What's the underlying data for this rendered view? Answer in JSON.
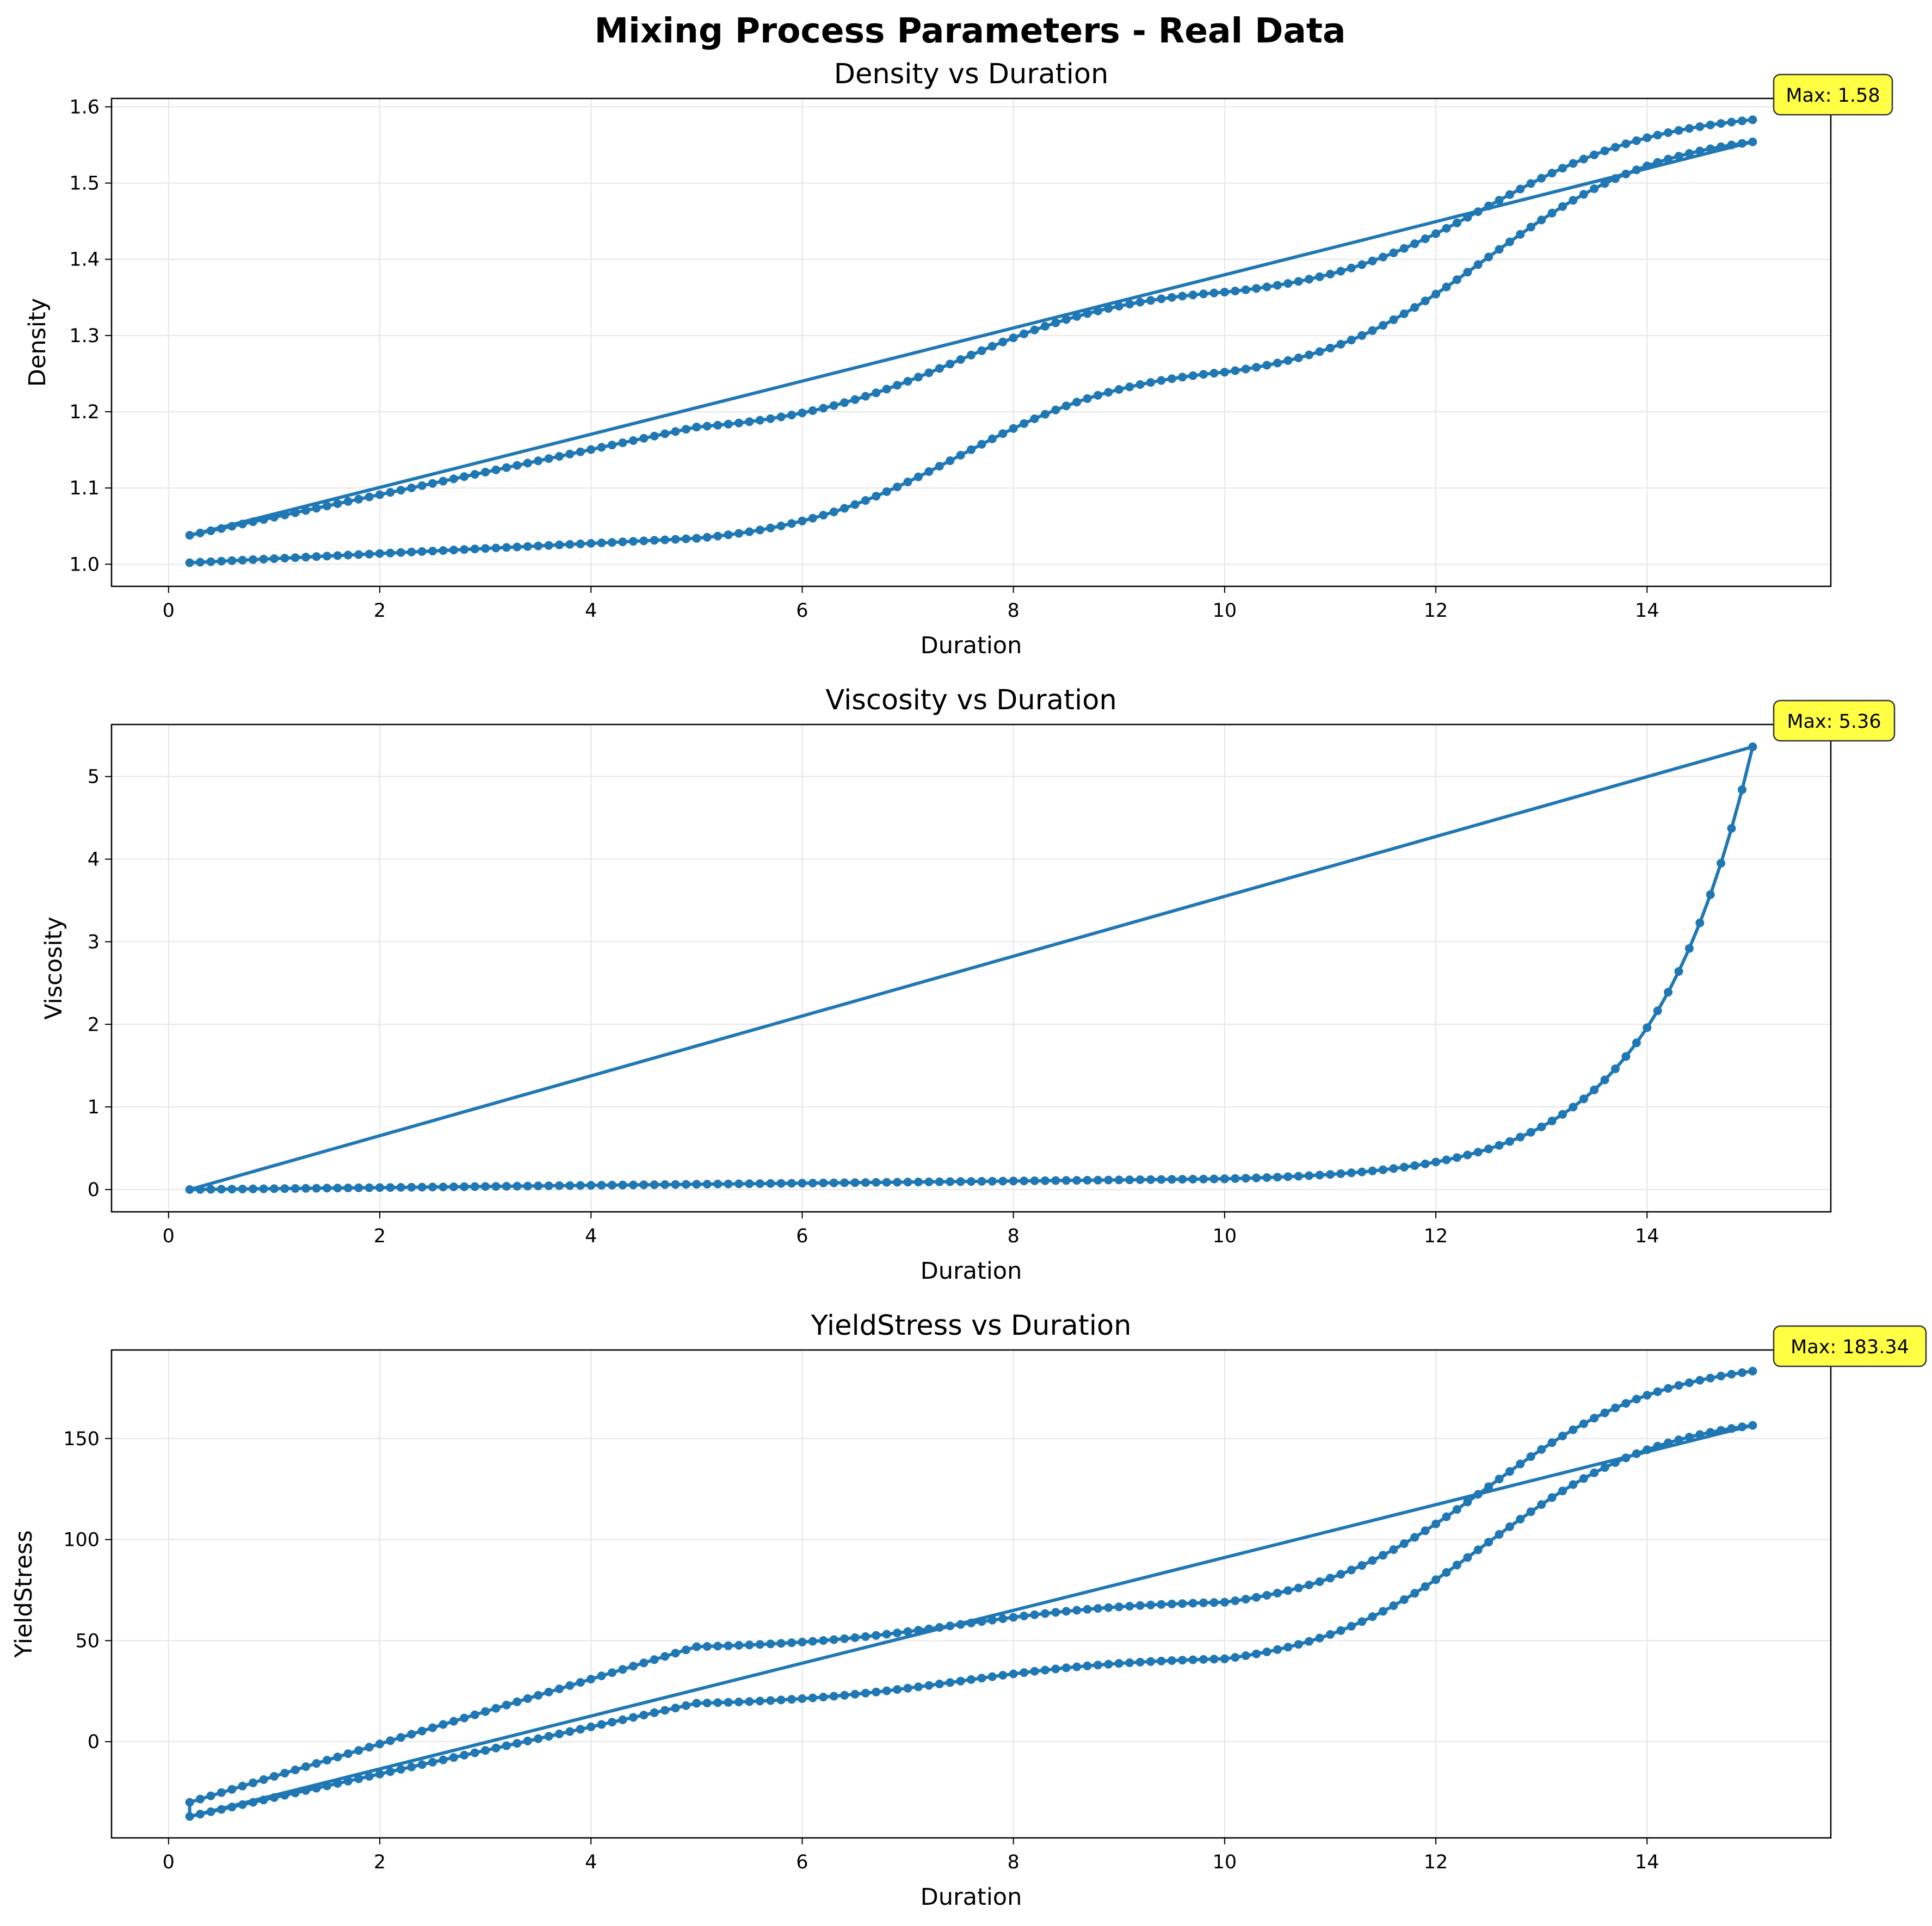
{
  "figure": {
    "suptitle": "Mixing Process Parameters - Real Data"
  },
  "colors": {
    "series": "#1f77b4",
    "annotation_bg": "#ffff44",
    "grid": "#e6e6e6"
  },
  "chart_data": [
    {
      "type": "line",
      "title": "Density vs Duration",
      "xlabel": "Duration",
      "ylabel": "Density",
      "xlim": [
        -0.54,
        15.74
      ],
      "ylim": [
        0.971,
        1.611
      ],
      "xticks": [
        0,
        2,
        4,
        6,
        8,
        10,
        12,
        14
      ],
      "yticks": [
        1.0,
        1.1,
        1.2,
        1.3,
        1.4,
        1.5,
        1.6
      ],
      "ytick_decimals": 1,
      "grid": true,
      "annotation": "Max: 1.58",
      "segments": [
        {
          "x": [
            0.2,
            5.0
          ],
          "y": [
            1.002,
            1.034
          ],
          "curve": "linear"
        },
        {
          "x": [
            5.0,
            10.0
          ],
          "y": [
            1.034,
            1.252
          ],
          "curve": "sigmoid"
        },
        {
          "x": [
            10.0,
            15.0
          ],
          "y": [
            1.252,
            1.554
          ],
          "curve": "sigmoid"
        },
        {
          "x": [
            15.0,
            0.2
          ],
          "y": [
            1.554,
            1.038
          ],
          "curve": "line"
        },
        {
          "x": [
            0.2,
            5.0
          ],
          "y": [
            1.038,
            1.18
          ],
          "curve": "linear"
        },
        {
          "x": [
            5.0,
            10.0
          ],
          "y": [
            1.18,
            1.357
          ],
          "curve": "sigmoid"
        },
        {
          "x": [
            10.0,
            15.0
          ],
          "y": [
            1.357,
            1.583
          ],
          "curve": "sigmoid"
        }
      ]
    },
    {
      "type": "line",
      "title": "Viscosity vs Duration",
      "xlabel": "Duration",
      "ylabel": "Viscosity",
      "xlim": [
        -0.54,
        15.74
      ],
      "ylim": [
        -0.27,
        5.63
      ],
      "xticks": [
        0,
        2,
        4,
        6,
        8,
        10,
        12,
        14
      ],
      "yticks": [
        0,
        1,
        2,
        3,
        4,
        5
      ],
      "ytick_decimals": 0,
      "grid": true,
      "annotation": "Max: 5.36",
      "segments": [
        {
          "x": [
            0.2,
            10.0
          ],
          "y": [
            0.0,
            0.13
          ],
          "curve": "linear"
        },
        {
          "x": [
            10.0,
            15.0
          ],
          "y": [
            0.13,
            5.36
          ],
          "curve": "exponential"
        },
        {
          "x": [
            15.0,
            0.2
          ],
          "y": [
            5.36,
            0.0
          ],
          "curve": "line"
        }
      ]
    },
    {
      "type": "line",
      "title": "YieldStress vs Duration",
      "xlabel": "Duration",
      "ylabel": "YieldStress",
      "xlim": [
        -0.54,
        15.74
      ],
      "ylim": [
        -47.6,
        193.8
      ],
      "xticks": [
        0,
        2,
        4,
        6,
        8,
        10,
        12,
        14
      ],
      "yticks": [
        0,
        50,
        100,
        150
      ],
      "ytick_decimals": 0,
      "grid": true,
      "annotation": "Max: 183.34",
      "segments": [
        {
          "x": [
            0.2,
            5.0
          ],
          "y": [
            -37.0,
            19.0
          ],
          "curve": "linear"
        },
        {
          "x": [
            5.0,
            10.0
          ],
          "y": [
            19.0,
            41.0
          ],
          "curve": "sigmoid"
        },
        {
          "x": [
            10.0,
            15.0
          ],
          "y": [
            41.0,
            156.5
          ],
          "curve": "sigmoid"
        },
        {
          "x": [
            15.0,
            0.2
          ],
          "y": [
            156.5,
            -37.0
          ],
          "curve": "line"
        },
        {
          "x": [
            0.2,
            5.0
          ],
          "y": [
            -30.0,
            47.0
          ],
          "curve": "linear"
        },
        {
          "x": [
            5.0,
            10.0
          ],
          "y": [
            47.0,
            69.0
          ],
          "curve": "sigmoid"
        },
        {
          "x": [
            10.0,
            15.0
          ],
          "y": [
            69.0,
            183.34
          ],
          "curve": "sigmoid"
        }
      ]
    }
  ]
}
